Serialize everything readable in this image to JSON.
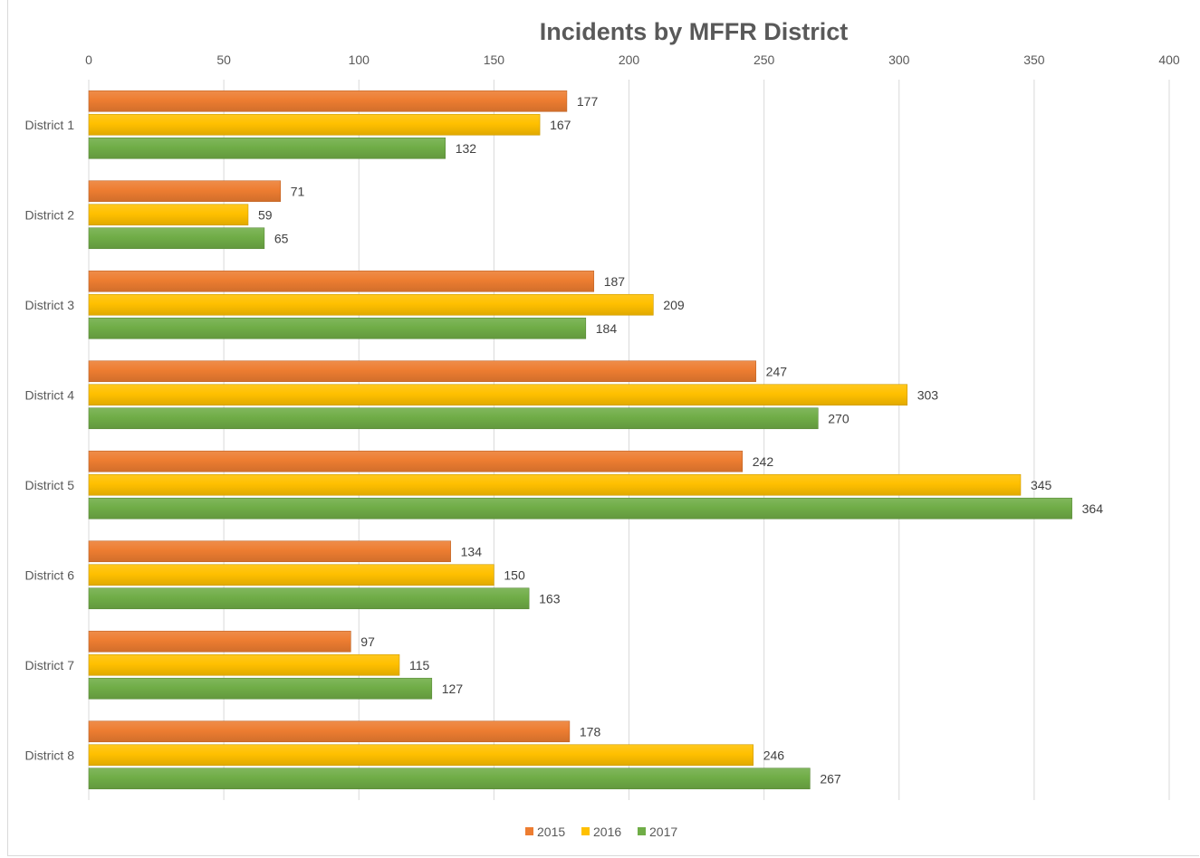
{
  "chart_data": {
    "type": "bar",
    "orientation": "horizontal",
    "title": "Incidents by MFFR District",
    "xlabel": "",
    "ylabel": "",
    "xlim": [
      0,
      400
    ],
    "x_ticks": [
      "0",
      "50",
      "100",
      "150",
      "200",
      "250",
      "300",
      "350",
      "400"
    ],
    "x_axis_position": "top",
    "grid": true,
    "legend_position": "bottom",
    "categories": [
      "District 1",
      "District 2",
      "District 3",
      "District 4",
      "District 5",
      "District 6",
      "District 7",
      "District 8"
    ],
    "series": [
      {
        "name": "2015",
        "color": "#ED7D31",
        "values": [
          177,
          71,
          187,
          247,
          242,
          134,
          97,
          178
        ]
      },
      {
        "name": "2016",
        "color": "#FFC000",
        "values": [
          167,
          59,
          209,
          303,
          345,
          150,
          115,
          246
        ]
      },
      {
        "name": "2017",
        "color": "#70AD47",
        "values": [
          132,
          65,
          184,
          270,
          364,
          163,
          127,
          267
        ]
      }
    ]
  }
}
